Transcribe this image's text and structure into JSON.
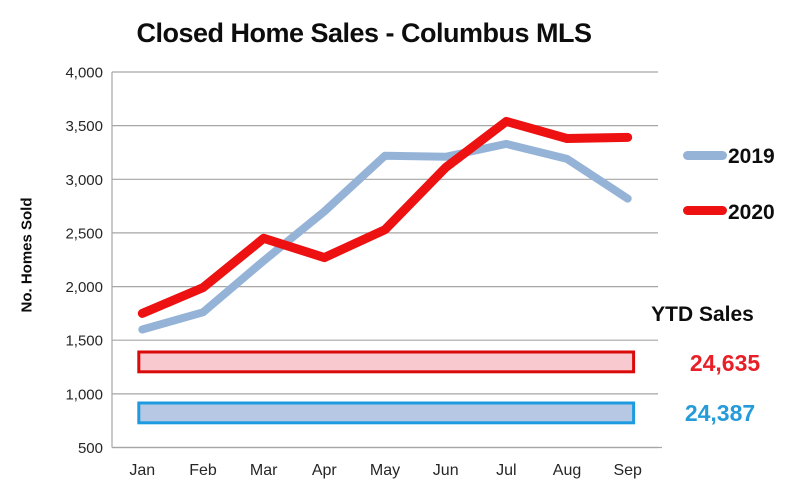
{
  "title": "Closed Home Sales - Columbus MLS",
  "y_axis_label": "No. Homes Sold",
  "ytd_sales": {
    "heading": "YTD Sales",
    "values": [
      {
        "series": "2020",
        "text": "24,635",
        "color": "#E81F26"
      },
      {
        "series": "2019",
        "text": "24,387",
        "color": "#259CD9"
      }
    ]
  },
  "chart_data": {
    "type": "line",
    "title": "Closed Home Sales - Columbus MLS",
    "xlabel": "",
    "ylabel": "No. Homes Sold",
    "categories": [
      "Jan",
      "Feb",
      "Mar",
      "Apr",
      "May",
      "Jun",
      "Jul",
      "Aug",
      "Sep"
    ],
    "series": [
      {
        "name": "2019",
        "color": "#95B3D7",
        "stroke_width": 8,
        "values": [
          1600,
          1760,
          2240,
          2700,
          3220,
          3210,
          3330,
          3190,
          2820
        ]
      },
      {
        "name": "2020",
        "color": "#ED1111",
        "stroke_width": 9,
        "values": [
          1750,
          1990,
          2450,
          2270,
          2530,
          3110,
          3540,
          3380,
          3390
        ]
      }
    ],
    "ylim": [
      500,
      4000
    ],
    "yticks": [
      4000,
      3500,
      3000,
      2500,
      2000,
      1500,
      1000,
      500
    ],
    "ytick_labels": [
      "4,000",
      "3,500",
      "3,000",
      "2,500",
      "2,000",
      "1,500",
      "1,000",
      "500"
    ],
    "grid": true,
    "grid_color": "#A6A6A6",
    "axis_color": "#A6A6A6",
    "tick_color": "#262626",
    "legend_position": "right",
    "annotation_bars": [
      {
        "name": "ytd-2020-bar",
        "series": "2020",
        "linked_value": "24,635",
        "fill": "#F8C9CE",
        "stroke": "#DB0A0A",
        "value_top": 1390,
        "value_bottom": 1205
      },
      {
        "name": "ytd-2019-bar",
        "series": "2019",
        "linked_value": "24,387",
        "fill": "#B6C8E4",
        "stroke": "#1E9BE0",
        "value_top": 915,
        "value_bottom": 730
      }
    ]
  }
}
